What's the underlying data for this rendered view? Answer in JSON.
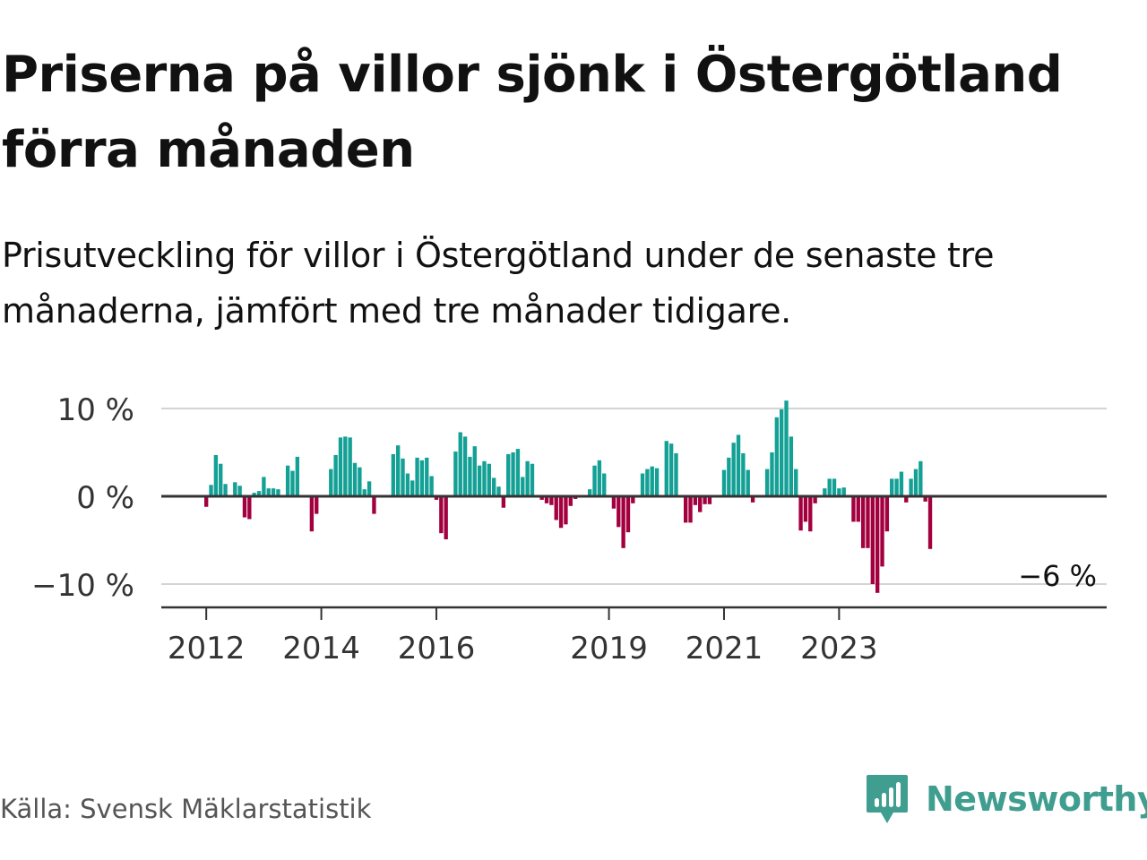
{
  "title": "Priserna på villor sjönk i Östergötland förra månaden",
  "subtitle": "Prisutveckling för villor i Östergötland under de senaste tre månaderna, jämfört med tre månader tidigare.",
  "source": "Källa: Svensk Mäklarstatistik",
  "brand": "Newsworthy",
  "colors": {
    "positive": "#13a095",
    "negative": "#a3003f",
    "brand": "#3f9e8f",
    "grid": "#d4d4d4",
    "axis": "#333333"
  },
  "chart_data": {
    "type": "bar",
    "x_start": "2012-01",
    "x_end": "2024-04",
    "ylim": [
      -12,
      12
    ],
    "grid": true,
    "y_ticks": [
      {
        "value": 10,
        "label": "10 %"
      },
      {
        "value": 0,
        "label": "0 %"
      },
      {
        "value": -10,
        "label": "−10 %"
      }
    ],
    "x_ticks": [
      {
        "year": 2012,
        "label": "2012"
      },
      {
        "year": 2014,
        "label": "2014"
      },
      {
        "year": 2016,
        "label": "2016"
      },
      {
        "year": 2019,
        "label": "2019"
      },
      {
        "year": 2021,
        "label": "2021"
      },
      {
        "year": 2023,
        "label": "2023"
      }
    ],
    "annotation": {
      "label": "−6 %",
      "value": -6
    },
    "values": [
      -1.2,
      1.3,
      4.7,
      3.7,
      1.4,
      0,
      1.6,
      1.2,
      -2.4,
      -2.6,
      0.4,
      0.6,
      2.2,
      0.9,
      0.9,
      0.8,
      0,
      3.5,
      2.9,
      4.5,
      0,
      0,
      -4,
      -2,
      0,
      0,
      3.1,
      4.7,
      6.7,
      6.8,
      6.7,
      3.8,
      3.3,
      0.8,
      1.7,
      -2,
      0,
      0,
      0,
      4.8,
      5.8,
      4.3,
      2.6,
      1.8,
      4.4,
      4.1,
      4.4,
      2.3,
      -0.4,
      -4.2,
      -4.9,
      0,
      5.1,
      7.3,
      6.8,
      4.5,
      5.7,
      3.5,
      4,
      3.7,
      2.1,
      1.1,
      -1.3,
      4.8,
      5,
      5.4,
      2.2,
      4,
      3.7,
      0,
      -0.4,
      -0.8,
      -1,
      -2.7,
      -3.6,
      -3.2,
      -1.1,
      -0.3,
      0,
      0,
      0.8,
      3.5,
      4.1,
      2.6,
      0,
      -1.4,
      -3.5,
      -5.9,
      -4.1,
      -0.8,
      0,
      2.6,
      3.1,
      3.4,
      3.2,
      0,
      6.3,
      6,
      4.9,
      -0.1,
      -3,
      -3,
      -1,
      -1.8,
      -0.9,
      -0.9,
      0,
      0,
      3,
      4.4,
      6.1,
      7,
      4.9,
      3,
      -0.7,
      0,
      0,
      3.1,
      5,
      9,
      9.9,
      10.9,
      6.8,
      3.1,
      -3.9,
      -2.9,
      -4,
      -0.8,
      0,
      0.9,
      2,
      2,
      0.9,
      1,
      0,
      -2.9,
      -2.9,
      -5.9,
      -5.9,
      -10,
      -11,
      -8,
      -4,
      2,
      2,
      2.8,
      -0.7,
      2,
      3.1,
      4,
      -0.6,
      -6
    ]
  }
}
